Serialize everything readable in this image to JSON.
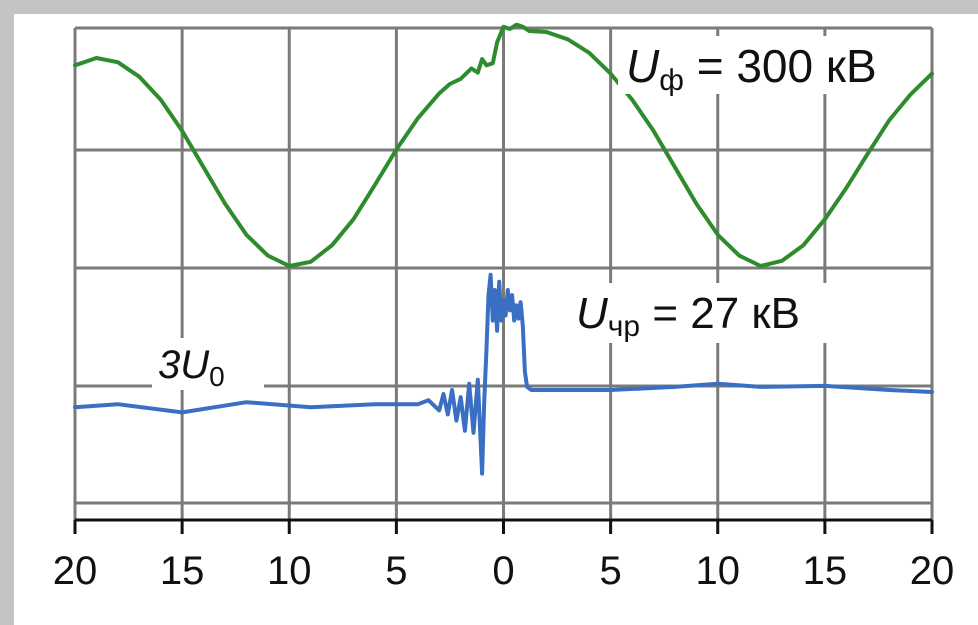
{
  "chart_data": {
    "type": "line",
    "title": "",
    "xlabel": "",
    "ylabel": "",
    "xlim": [
      -20,
      20
    ],
    "x_tick_labels": [
      "20",
      "15",
      "10",
      "5",
      "0",
      "5",
      "10",
      "15",
      "20"
    ],
    "x_tick_values": [
      -20,
      -15,
      -10,
      -5,
      0,
      5,
      10,
      15,
      20
    ],
    "grid": true,
    "colors": {
      "phase": "#2e8b2e",
      "zero_seq": "#3a6fc4",
      "grid": "#7a7a7a",
      "frame": "#b8b8b8"
    },
    "series": [
      {
        "key": "phase",
        "annotation_main": "U",
        "annotation_sub": "ф",
        "annotation_rest": " = 300 кВ",
        "x": [
          -20,
          -19,
          -18,
          -17,
          -16,
          -15,
          -14,
          -13,
          -12,
          -11,
          -10,
          -9,
          -8,
          -7,
          -6,
          -5,
          -4,
          -3,
          -2.5,
          -2,
          -1.5,
          -1.2,
          -1,
          -0.8,
          -0.5,
          -0.3,
          0,
          0.3,
          0.6,
          0.9,
          1.2,
          2,
          3,
          4,
          5,
          6,
          7,
          8,
          9,
          10,
          11,
          12,
          13,
          14,
          15,
          16,
          17,
          18,
          19,
          20
        ],
        "y": [
          0.93,
          1.0,
          0.96,
          0.82,
          0.6,
          0.3,
          -0.05,
          -0.4,
          -0.7,
          -0.9,
          -1.0,
          -0.96,
          -0.8,
          -0.55,
          -0.22,
          0.12,
          0.42,
          0.66,
          0.75,
          0.8,
          0.9,
          0.86,
          0.99,
          0.93,
          0.95,
          1.15,
          1.3,
          1.28,
          1.32,
          1.3,
          1.26,
          1.25,
          1.18,
          1.05,
          0.85,
          0.6,
          0.3,
          -0.05,
          -0.4,
          -0.7,
          -0.9,
          -1.0,
          -0.95,
          -0.8,
          -0.55,
          -0.25,
          0.08,
          0.4,
          0.65,
          0.85
        ]
      },
      {
        "key": "zero_seq",
        "annotation_main": "3U",
        "annotation_sub": "0",
        "annotation_rest": "",
        "annotation2_main": "U",
        "annotation2_sub": "чр",
        "annotation2_rest": " = 27 кВ",
        "x": [
          -20,
          -18,
          -15,
          -12,
          -9,
          -6,
          -4,
          -3.5,
          -3,
          -2.8,
          -2.6,
          -2.4,
          -2.2,
          -2.0,
          -1.8,
          -1.6,
          -1.4,
          -1.2,
          -1.0,
          -0.9,
          -0.8,
          -0.7,
          -0.6,
          -0.5,
          -0.4,
          -0.3,
          -0.2,
          -0.1,
          0,
          0.1,
          0.2,
          0.3,
          0.4,
          0.5,
          0.6,
          0.7,
          0.8,
          0.9,
          1.0,
          1.1,
          1.3,
          2,
          5,
          8,
          10,
          12,
          15,
          18,
          20
        ],
        "y": [
          -0.15,
          -0.12,
          -0.2,
          -0.1,
          -0.15,
          -0.12,
          -0.12,
          -0.08,
          -0.18,
          -0.02,
          -0.22,
          0.02,
          -0.28,
          -0.05,
          -0.38,
          0.08,
          -0.4,
          0.12,
          -0.8,
          -0.1,
          0.4,
          0.95,
          1.15,
          0.7,
          1.0,
          0.6,
          1.08,
          0.7,
          0.9,
          0.75,
          1.0,
          0.8,
          0.95,
          0.7,
          0.85,
          0.72,
          0.88,
          0.65,
          0.2,
          0.05,
          0.02,
          0.02,
          0.02,
          0.05,
          0.08,
          0.05,
          0.06,
          0.02,
          0.0
        ]
      }
    ]
  }
}
